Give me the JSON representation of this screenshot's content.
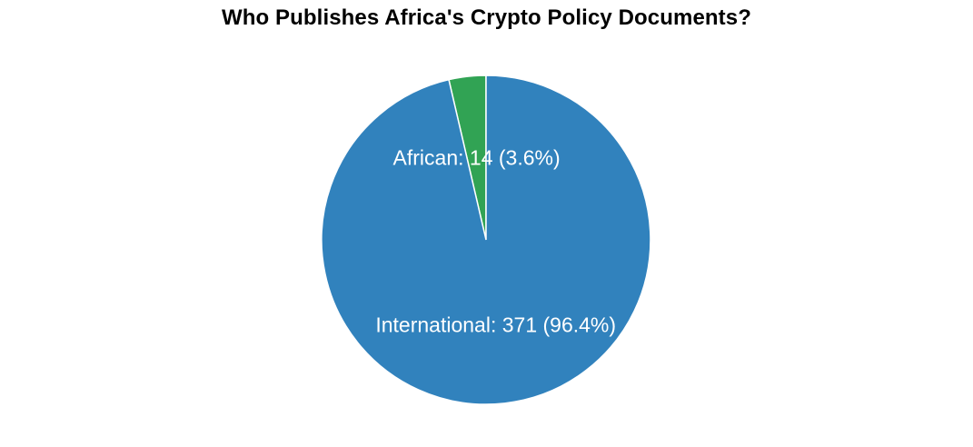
{
  "chart_data": {
    "type": "pie",
    "title": "Who Publishes Africa's Crypto Policy Documents?",
    "start": "12 o'clock",
    "direction": "counterclockwise",
    "slices": [
      {
        "category": "African",
        "value": 14,
        "percent": 3.6,
        "label": "African: 14 (3.6%)",
        "color": "#31a354"
      },
      {
        "category": "International",
        "value": 371,
        "percent": 96.4,
        "label": "International: 371 (96.4%)",
        "color": "#3182bd"
      }
    ],
    "slice_border_color": "#ffffff"
  }
}
